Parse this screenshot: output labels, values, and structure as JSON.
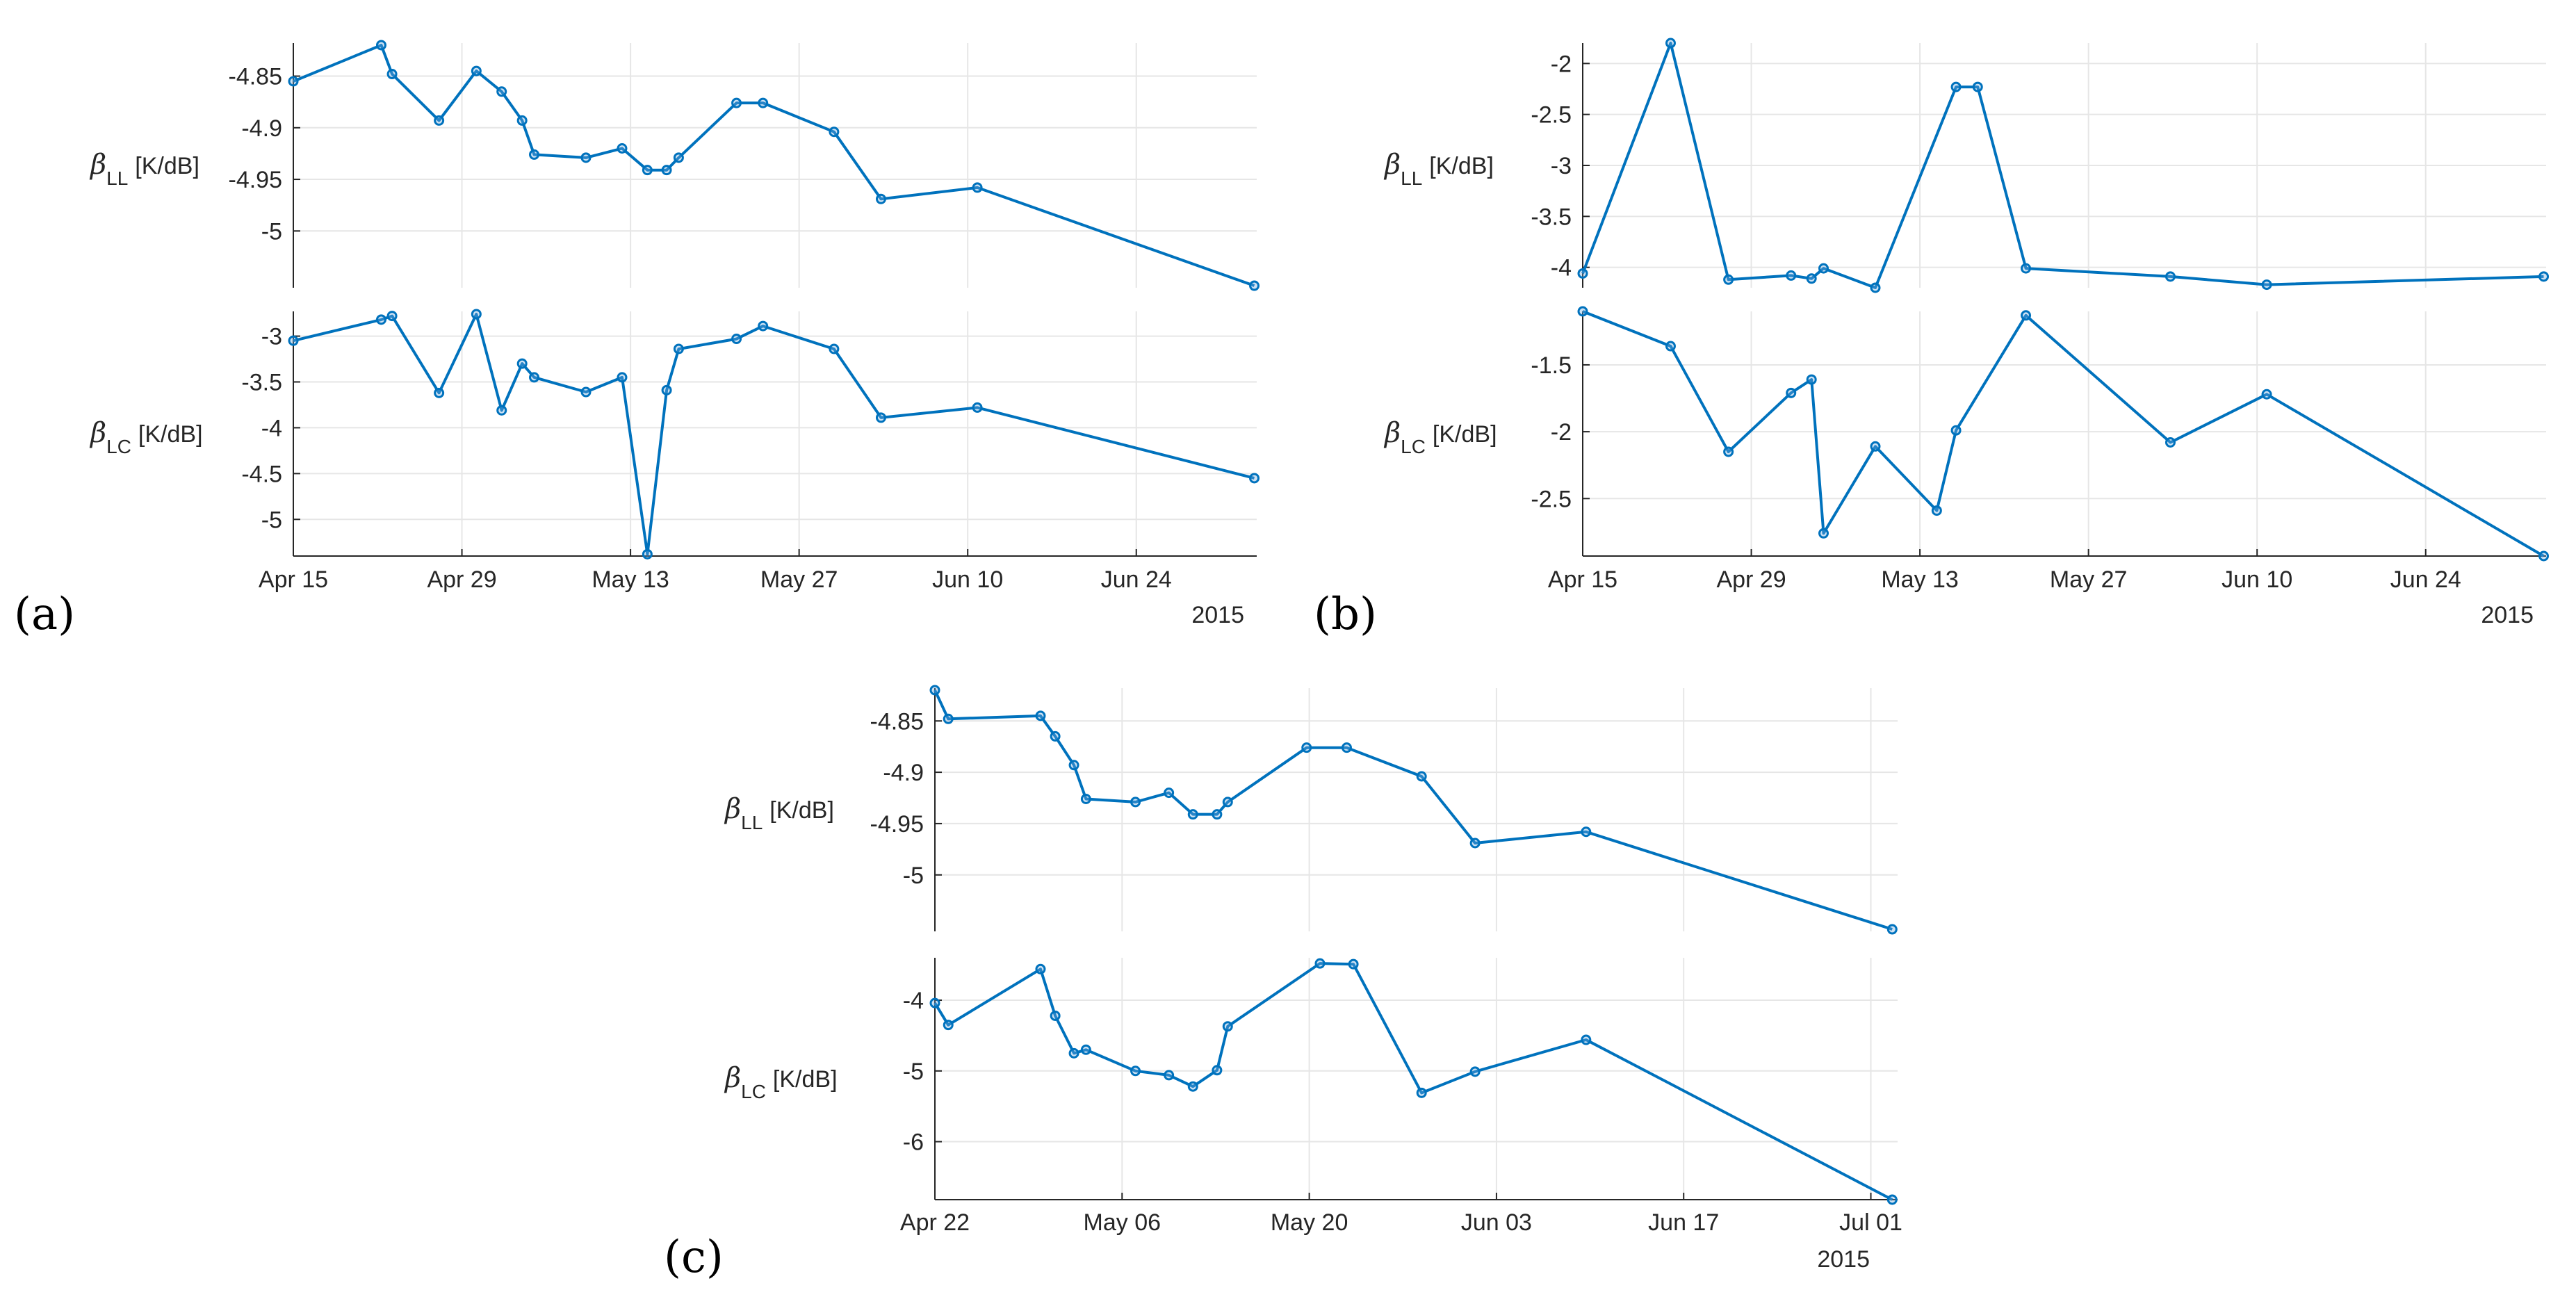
{
  "figure": {
    "year_label": "2015"
  },
  "colors": {
    "series": "#0072BD",
    "grid": "#e6e6e6",
    "axis": "#262626"
  },
  "chart_data": [
    {
      "id": "a",
      "panel_label": "(a)",
      "type": "line",
      "xlim": [
        0,
        80
      ],
      "x_ticks": [
        {
          "v": 0,
          "label": "Apr 15"
        },
        {
          "v": 14,
          "label": "Apr 29"
        },
        {
          "v": 28,
          "label": "May 13"
        },
        {
          "v": 42,
          "label": "May 27"
        },
        {
          "v": 56,
          "label": "Jun 10"
        },
        {
          "v": 70,
          "label": "Jun 24"
        }
      ],
      "subplots": [
        {
          "ylabel_symbol": "β",
          "ylabel_sub": "LL",
          "ylabel_unit": "[K/dB]",
          "ylim": [
            -5.055,
            -4.818
          ],
          "y_ticks": [
            {
              "v": -4.85,
              "label": "-4.85"
            },
            {
              "v": -4.9,
              "label": "-4.9"
            },
            {
              "v": -4.95,
              "label": "-4.95"
            },
            {
              "v": -5,
              "label": "-5"
            }
          ],
          "x": [
            0,
            7.3,
            8.2,
            12.1,
            15.2,
            17.3,
            19.0,
            20.0,
            24.3,
            27.3,
            29.4,
            31.0,
            32.0,
            36.8,
            39.0,
            44.9,
            48.8,
            56.8,
            79.8
          ],
          "y": [
            -4.855,
            -4.82,
            -4.848,
            -4.893,
            -4.845,
            -4.865,
            -4.893,
            -4.926,
            -4.929,
            -4.92,
            -4.941,
            -4.941,
            -4.929,
            -4.876,
            -4.876,
            -4.904,
            -4.969,
            -4.958,
            -5.053
          ]
        },
        {
          "ylabel_symbol": "β",
          "ylabel_sub": "LC",
          "ylabel_unit": "[K/dB]",
          "ylim": [
            -5.4,
            -2.73
          ],
          "y_ticks": [
            {
              "v": -3,
              "label": "-3"
            },
            {
              "v": -3.5,
              "label": "-3.5"
            },
            {
              "v": -4,
              "label": "-4"
            },
            {
              "v": -4.5,
              "label": "-4.5"
            },
            {
              "v": -5,
              "label": "-5"
            }
          ],
          "x": [
            0,
            7.3,
            8.2,
            12.1,
            15.2,
            17.3,
            19.0,
            20.0,
            24.3,
            27.3,
            29.4,
            31.0,
            32.0,
            36.8,
            39.0,
            44.9,
            48.8,
            56.8,
            79.8
          ],
          "y": [
            -3.05,
            -2.82,
            -2.78,
            -3.62,
            -2.76,
            -3.81,
            -3.3,
            -3.45,
            -3.61,
            -3.45,
            -5.38,
            -3.59,
            -3.14,
            -3.03,
            -2.89,
            -3.14,
            -3.89,
            -3.78,
            -4.55
          ]
        }
      ]
    },
    {
      "id": "b",
      "panel_label": "(b)",
      "type": "line",
      "xlim": [
        0,
        80
      ],
      "x_ticks": [
        {
          "v": 0,
          "label": "Apr 15"
        },
        {
          "v": 14,
          "label": "Apr 29"
        },
        {
          "v": 28,
          "label": "May 13"
        },
        {
          "v": 42,
          "label": "May 27"
        },
        {
          "v": 56,
          "label": "Jun 10"
        },
        {
          "v": 70,
          "label": "Jun 24"
        }
      ],
      "subplots": [
        {
          "ylabel_symbol": "β",
          "ylabel_sub": "LL",
          "ylabel_unit": "[K/dB]",
          "ylim": [
            -4.2,
            -1.8
          ],
          "y_ticks": [
            {
              "v": -2,
              "label": "-2"
            },
            {
              "v": -2.5,
              "label": "-2.5"
            },
            {
              "v": -3,
              "label": "-3"
            },
            {
              "v": -3.5,
              "label": "-3.5"
            },
            {
              "v": -4,
              "label": "-4"
            }
          ],
          "x": [
            0,
            7.3,
            12.1,
            17.3,
            19.0,
            20.0,
            24.3,
            31.0,
            32.8,
            36.8,
            48.8,
            56.8,
            79.8
          ],
          "y": [
            -4.06,
            -1.8,
            -4.12,
            -4.08,
            -4.11,
            -4.01,
            -4.2,
            -2.23,
            -2.23,
            -4.01,
            -4.09,
            -4.17,
            -4.09
          ]
        },
        {
          "ylabel_symbol": "β",
          "ylabel_sub": "LC",
          "ylabel_unit": "[K/dB]",
          "ylim": [
            -2.93,
            -1.1
          ],
          "y_ticks": [
            {
              "v": -1.5,
              "label": "-1.5"
            },
            {
              "v": -2,
              "label": "-2"
            },
            {
              "v": -2.5,
              "label": "-2.5"
            }
          ],
          "x": [
            0,
            7.3,
            12.1,
            17.3,
            19.0,
            20.0,
            24.3,
            29.4,
            31.0,
            36.8,
            48.8,
            56.8,
            79.8
          ],
          "y": [
            -1.1,
            -1.36,
            -2.15,
            -1.71,
            -1.61,
            -2.76,
            -2.11,
            -2.59,
            -1.99,
            -1.13,
            -2.08,
            -1.72,
            -2.93
          ]
        }
      ]
    },
    {
      "id": "c",
      "panel_label": "(c)",
      "type": "line",
      "xlim": [
        0,
        72
      ],
      "x_ticks": [
        {
          "v": 0,
          "label": "Apr 22"
        },
        {
          "v": 14,
          "label": "May 06"
        },
        {
          "v": 28,
          "label": "May 20"
        },
        {
          "v": 42,
          "label": "Jun 03"
        },
        {
          "v": 56,
          "label": "Jun 17"
        },
        {
          "v": 70,
          "label": "Jul 01"
        }
      ],
      "subplots": [
        {
          "ylabel_symbol": "β",
          "ylabel_sub": "LL",
          "ylabel_unit": "[K/dB]",
          "ylim": [
            -5.055,
            -4.818
          ],
          "y_ticks": [
            {
              "v": -4.85,
              "label": "-4.85"
            },
            {
              "v": -4.9,
              "label": "-4.9"
            },
            {
              "v": -4.95,
              "label": "-4.95"
            },
            {
              "v": -5,
              "label": "-5"
            }
          ],
          "x": [
            0,
            1.0,
            7.9,
            9.0,
            10.4,
            11.3,
            15.0,
            17.5,
            19.3,
            21.1,
            21.9,
            27.8,
            30.8,
            36.4,
            40.4,
            48.7,
            71.6
          ],
          "y": [
            -4.82,
            -4.848,
            -4.845,
            -4.865,
            -4.893,
            -4.926,
            -4.929,
            -4.92,
            -4.941,
            -4.941,
            -4.929,
            -4.876,
            -4.876,
            -4.904,
            -4.969,
            -4.958,
            -5.053
          ]
        },
        {
          "ylabel_symbol": "β",
          "ylabel_sub": "LC",
          "ylabel_unit": "[K/dB]",
          "ylim": [
            -6.82,
            -3.4
          ],
          "y_ticks": [
            {
              "v": -4,
              "label": "-4"
            },
            {
              "v": -5,
              "label": "-5"
            },
            {
              "v": -6,
              "label": "-6"
            }
          ],
          "x": [
            0,
            1.0,
            7.9,
            9.0,
            10.4,
            11.3,
            15.0,
            17.5,
            19.3,
            21.1,
            21.9,
            28.8,
            31.3,
            36.4,
            40.4,
            48.7,
            71.6
          ],
          "y": [
            -4.04,
            -4.35,
            -3.56,
            -4.22,
            -4.75,
            -4.7,
            -5.0,
            -5.06,
            -5.22,
            -4.99,
            -4.37,
            -3.48,
            -3.49,
            -5.31,
            -5.01,
            -4.56,
            -6.82
          ]
        }
      ]
    }
  ]
}
